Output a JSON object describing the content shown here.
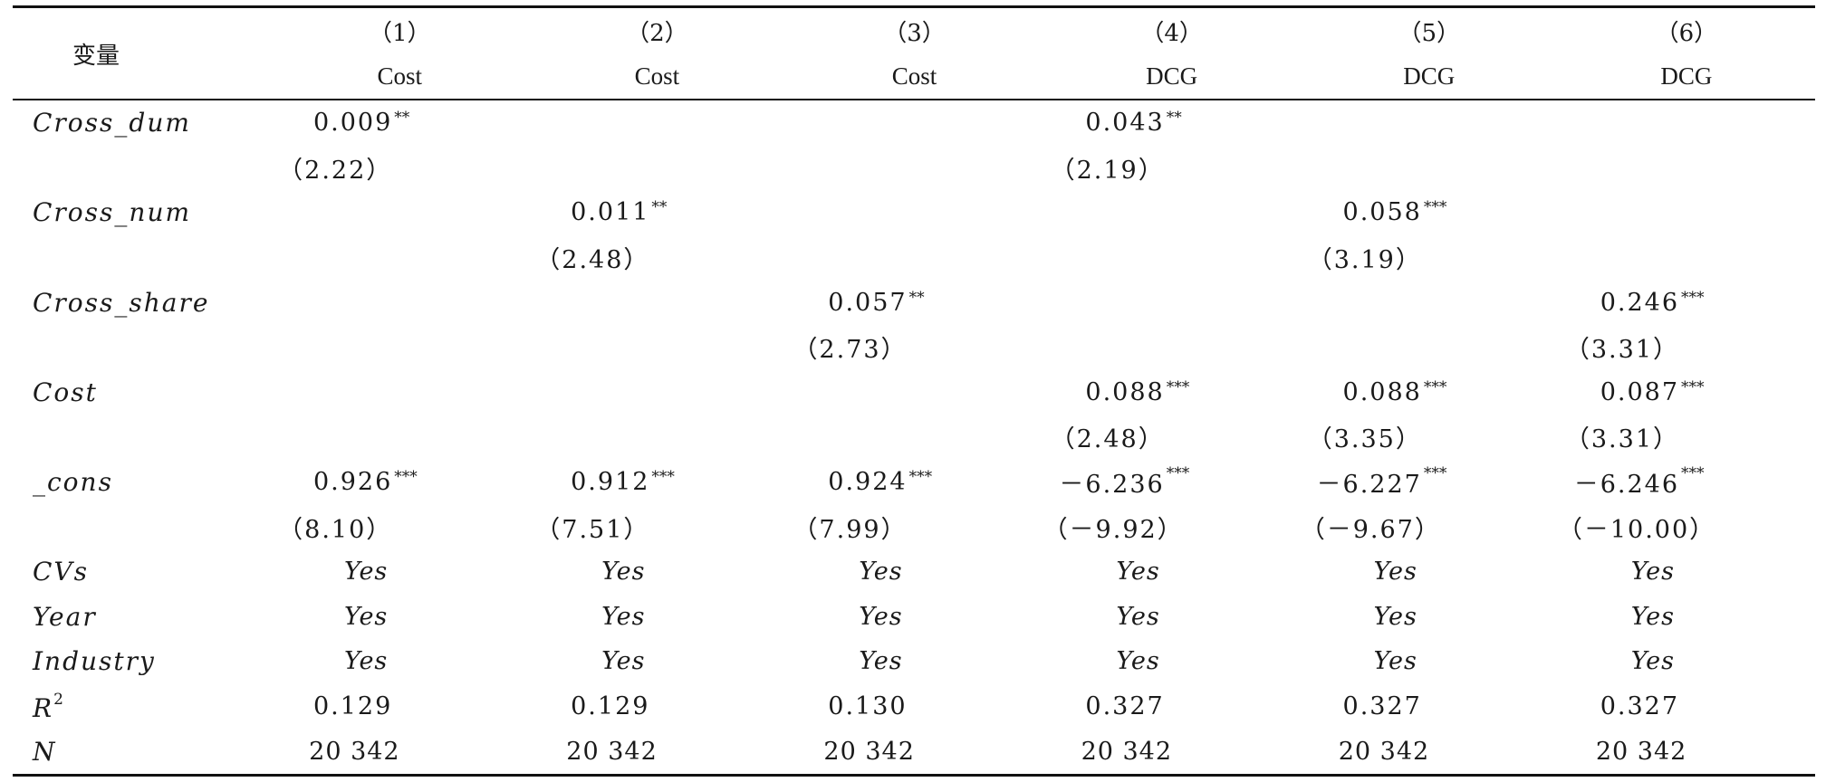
{
  "header": {
    "var_label": "变量",
    "columns": [
      {
        "num": "（1）",
        "dep": "Cost"
      },
      {
        "num": "（2）",
        "dep": "Cost"
      },
      {
        "num": "（3）",
        "dep": "Cost"
      },
      {
        "num": "（4）",
        "dep": "DCG"
      },
      {
        "num": "（5）",
        "dep": "DCG"
      },
      {
        "num": "（6）",
        "dep": "DCG"
      }
    ]
  },
  "rows": [
    {
      "var": "Cross_dum",
      "coef": [
        "0.009",
        "",
        "",
        "0.043",
        "",
        ""
      ],
      "stars": [
        "**",
        "",
        "",
        "**",
        "",
        ""
      ],
      "t": [
        "（2.22）",
        "",
        "",
        "（2.19）",
        "",
        ""
      ]
    },
    {
      "var": "Cross_num",
      "coef": [
        "",
        "0.011",
        "",
        "",
        "0.058",
        ""
      ],
      "stars": [
        "",
        "**",
        "",
        "",
        "***",
        ""
      ],
      "t": [
        "",
        "（2.48）",
        "",
        "",
        "（3.19）",
        ""
      ]
    },
    {
      "var": "Cross_share",
      "coef": [
        "",
        "",
        "0.057",
        "",
        "",
        "0.246"
      ],
      "stars": [
        "",
        "",
        "**",
        "",
        "",
        "***"
      ],
      "t": [
        "",
        "",
        "（2.73）",
        "",
        "",
        "（3.31）"
      ]
    },
    {
      "var": "Cost",
      "coef": [
        "",
        "",
        "",
        "0.088",
        "0.088",
        "0.087"
      ],
      "stars": [
        "",
        "",
        "",
        "***",
        "***",
        "***"
      ],
      "t": [
        "",
        "",
        "",
        "（2.48）",
        "（3.35）",
        "（3.31）"
      ]
    },
    {
      "var": "_cons",
      "coef": [
        "0.926",
        "0.912",
        "0.924",
        "－6.236",
        "－6.227",
        "－6.246"
      ],
      "stars": [
        "***",
        "***",
        "***",
        "***",
        "***",
        "***"
      ],
      "t": [
        "（8.10）",
        "（7.51）",
        "（7.99）",
        "（－9.92）",
        "（－9.67）",
        "（－10.00）"
      ]
    }
  ],
  "controls": [
    {
      "var": "CVs",
      "values": [
        "Yes",
        "Yes",
        "Yes",
        "Yes",
        "Yes",
        "Yes"
      ]
    },
    {
      "var": "Year",
      "values": [
        "Yes",
        "Yes",
        "Yes",
        "Yes",
        "Yes",
        "Yes"
      ]
    },
    {
      "var": "Industry",
      "values": [
        "Yes",
        "Yes",
        "Yes",
        "Yes",
        "Yes",
        "Yes"
      ]
    }
  ],
  "r2": {
    "var": "R",
    "sup": "2",
    "values": [
      "0.129",
      "0.129",
      "0.130",
      "0.327",
      "0.327",
      "0.327"
    ]
  },
  "n": {
    "var": "N",
    "values": [
      "20 342",
      "20 342",
      "20 342",
      "20 342",
      "20 342",
      "20 342"
    ]
  }
}
